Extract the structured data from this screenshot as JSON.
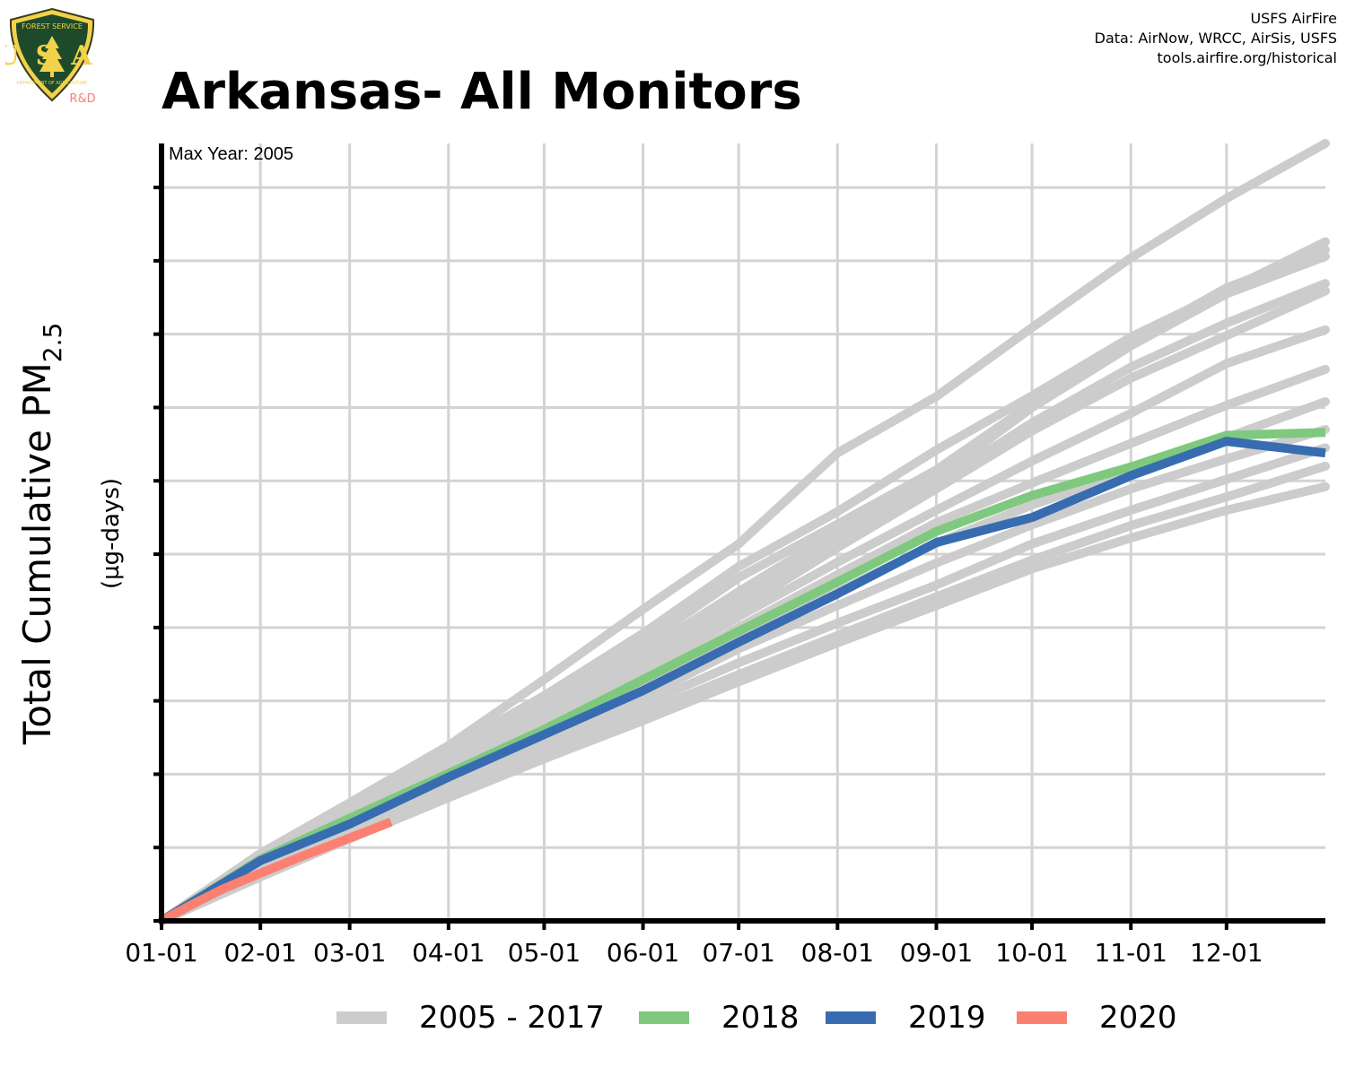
{
  "logo": {
    "top_text": "FOREST SERVICE",
    "letters": "USA",
    "bottom_text": "DEPARTMENT OF AGRICULTURE",
    "tag": "R&D",
    "icon": "usfs-shield-logo"
  },
  "credits": {
    "line1": "USFS AirFire",
    "line2": "Data: AirNow, WRCC, AirSis, USFS",
    "line3": "tools.airfire.org/historical"
  },
  "title": "Arkansas- All Monitors",
  "colors": {
    "historical": "#cccccc",
    "y2018": "#7fc97f",
    "y2019": "#386cb0",
    "y2020": "#fb8072",
    "grid": "#d3d3d3",
    "axis": "#000000"
  },
  "chart_data": {
    "type": "line",
    "title": "Arkansas- All Monitors",
    "annotation": "Max Year: 2005",
    "ylabel_main": "Total Cumulative PM",
    "ylabel_sub": "2.5",
    "ylabel_units": "(µg-days)",
    "xlabel": "",
    "x_unit": "day of year",
    "xlim": [
      1,
      366
    ],
    "ylim": [
      0,
      106
    ],
    "y_ticks": [
      0,
      10,
      20,
      30,
      40,
      50,
      60,
      70,
      80,
      90,
      100
    ],
    "y_tick_labels_shown": false,
    "x_ticks": [
      {
        "label": "01-01",
        "day": 1
      },
      {
        "label": "02-01",
        "day": 32
      },
      {
        "label": "03-01",
        "day": 60
      },
      {
        "label": "04-01",
        "day": 91
      },
      {
        "label": "05-01",
        "day": 121
      },
      {
        "label": "06-01",
        "day": 152
      },
      {
        "label": "07-01",
        "day": 182
      },
      {
        "label": "08-01",
        "day": 213
      },
      {
        "label": "09-01",
        "day": 244
      },
      {
        "label": "10-01",
        "day": 274
      },
      {
        "label": "11-01",
        "day": 305
      },
      {
        "label": "12-01",
        "day": 335
      }
    ],
    "grid": true,
    "legend_position": "bottom",
    "legend": [
      {
        "label": "2005 - 2017",
        "color": "#cccccc"
      },
      {
        "label": "2018",
        "color": "#7fc97f"
      },
      {
        "label": "2019",
        "color": "#386cb0"
      },
      {
        "label": "2020",
        "color": "#fb8072"
      }
    ],
    "historical_group": "2005 - 2017",
    "historical_series": [
      {
        "x": [
          1,
          32,
          60,
          91,
          121,
          152,
          182,
          213,
          244,
          274,
          305,
          335,
          366
        ],
        "y": [
          0,
          9.2,
          16.1,
          23.9,
          32.9,
          42.5,
          51.4,
          63.8,
          71.5,
          80.9,
          90.4,
          98.5,
          106
        ]
      },
      {
        "x": [
          1,
          32,
          60,
          91,
          121,
          152,
          182,
          213,
          244,
          274,
          305,
          335,
          366
        ],
        "y": [
          0,
          8.5,
          15.3,
          23.3,
          30.7,
          39.2,
          48.3,
          55.8,
          64.2,
          71.6,
          79.6,
          85.9,
          92.6
        ]
      },
      {
        "x": [
          1,
          32,
          60,
          91,
          121,
          152,
          182,
          213,
          244,
          274,
          305,
          335,
          366
        ],
        "y": [
          0,
          8.1,
          14.8,
          22.1,
          29.7,
          37.8,
          46.8,
          54.1,
          61.5,
          70.5,
          79.0,
          86.3,
          91.5
        ]
      },
      {
        "x": [
          1,
          32,
          60,
          91,
          121,
          152,
          182,
          213,
          244,
          274,
          305,
          335,
          366
        ],
        "y": [
          0,
          7.8,
          14.3,
          21.6,
          29.0,
          36.6,
          44.9,
          53.1,
          60.4,
          70.0,
          78.4,
          85.5,
          90.6
        ]
      },
      {
        "x": [
          1,
          32,
          60,
          91,
          121,
          152,
          182,
          213,
          244,
          274,
          305,
          335,
          366
        ],
        "y": [
          0,
          7.5,
          13.9,
          21.0,
          28.3,
          35.3,
          43.6,
          51.9,
          59.6,
          67.9,
          75.5,
          81.5,
          86.9
        ]
      },
      {
        "x": [
          1,
          32,
          60,
          91,
          121,
          152,
          182,
          213,
          244,
          274,
          305,
          335,
          366
        ],
        "y": [
          0,
          7.4,
          13.6,
          20.5,
          27.4,
          34.5,
          42.5,
          50.9,
          58.9,
          66.8,
          74.0,
          79.8,
          85.9
        ]
      },
      {
        "x": [
          1,
          32,
          60,
          91,
          121,
          152,
          182,
          213,
          244,
          274,
          305,
          335,
          366
        ],
        "y": [
          0,
          7.2,
          13.3,
          20.0,
          26.6,
          33.6,
          41.5,
          48.9,
          56.0,
          62.7,
          69.2,
          76.0,
          80.6
        ]
      },
      {
        "x": [
          1,
          32,
          60,
          91,
          121,
          152,
          182,
          213,
          244,
          274,
          305,
          335,
          366
        ],
        "y": [
          0,
          7.0,
          13.0,
          19.5,
          25.9,
          32.3,
          40.0,
          47.2,
          54.3,
          59.7,
          65.1,
          70.3,
          75.2
        ]
      },
      {
        "x": [
          1,
          32,
          60,
          91,
          121,
          152,
          182,
          213,
          244,
          274,
          305,
          335,
          366
        ],
        "y": [
          0,
          6.8,
          12.7,
          19.0,
          25.2,
          31.4,
          38.5,
          44.8,
          51.5,
          56.7,
          61.3,
          65.9,
          70.8
        ]
      },
      {
        "x": [
          1,
          32,
          60,
          91,
          121,
          152,
          182,
          213,
          244,
          274,
          305,
          335,
          366
        ],
        "y": [
          0,
          6.6,
          12.4,
          18.5,
          24.5,
          30.5,
          37.1,
          43.0,
          48.8,
          54.0,
          58.9,
          63.0,
          67.0
        ]
      },
      {
        "x": [
          1,
          32,
          60,
          91,
          121,
          152,
          182,
          213,
          244,
          274,
          305,
          335,
          366
        ],
        "y": [
          0,
          6.4,
          12.0,
          18.0,
          23.7,
          29.5,
          35.2,
          40.6,
          45.8,
          51.4,
          56.0,
          60.2,
          64.5
        ]
      },
      {
        "x": [
          1,
          32,
          60,
          91,
          121,
          152,
          182,
          213,
          244,
          274,
          305,
          335,
          366
        ],
        "y": [
          0,
          6.2,
          11.6,
          17.4,
          22.9,
          28.3,
          33.6,
          38.9,
          44.2,
          49.2,
          53.9,
          57.8,
          62.0
        ]
      },
      {
        "x": [
          1,
          32,
          60,
          91,
          121,
          152,
          182,
          213,
          244,
          274,
          305,
          335,
          366
        ],
        "y": [
          0,
          6.0,
          11.2,
          16.8,
          22.1,
          27.3,
          32.6,
          37.9,
          43.0,
          48.0,
          52.2,
          56.0,
          59.2
        ]
      }
    ],
    "series": [
      {
        "name": "2018",
        "color": "#7fc97f",
        "x": [
          1,
          32,
          60,
          91,
          121,
          152,
          182,
          213,
          244,
          274,
          305,
          335,
          366
        ],
        "y": [
          0,
          8.4,
          14.0,
          20.1,
          26.1,
          32.9,
          39.5,
          46.2,
          53.1,
          58.0,
          61.9,
          66.2,
          66.6
        ]
      },
      {
        "name": "2019",
        "color": "#386cb0",
        "x": [
          1,
          32,
          60,
          91,
          121,
          152,
          182,
          213,
          244,
          274,
          305,
          335,
          366
        ],
        "y": [
          0,
          8.2,
          13.2,
          19.6,
          25.4,
          31.4,
          38.0,
          44.6,
          51.6,
          55.0,
          60.7,
          65.4,
          63.8
        ]
      },
      {
        "name": "2020",
        "color": "#fb8072",
        "x": [
          1,
          10,
          20,
          32,
          45,
          60,
          73
        ],
        "y": [
          0,
          2.1,
          4.3,
          6.5,
          8.8,
          11.3,
          13.5
        ]
      }
    ]
  }
}
